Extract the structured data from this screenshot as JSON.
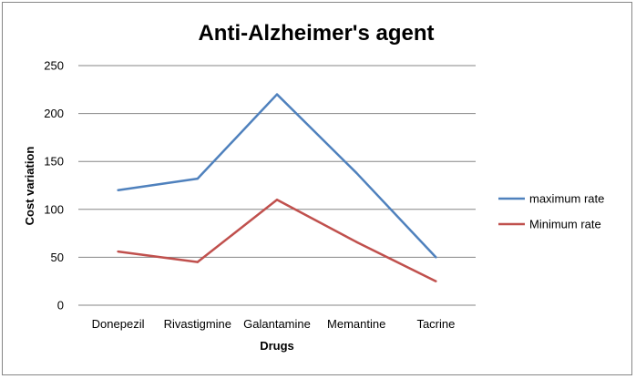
{
  "chart_data": {
    "type": "line",
    "title": "Anti-Alzheimer's agent",
    "xlabel": "Drugs",
    "ylabel": "Cost variation",
    "categories": [
      "Donepezil",
      "Rivastigmine",
      "Galantamine",
      "Memantine",
      "Tacrine"
    ],
    "ylim": [
      0,
      250
    ],
    "yticks": [
      0,
      50,
      100,
      150,
      200,
      250
    ],
    "grid": true,
    "legend_position": "right",
    "series": [
      {
        "name": "maximum rate",
        "color": "#4F81BD",
        "values": [
          120,
          132,
          220,
          138,
          50
        ]
      },
      {
        "name": "Minimum rate",
        "color": "#C0504D",
        "values": [
          56,
          45,
          110,
          66,
          25
        ]
      }
    ]
  }
}
